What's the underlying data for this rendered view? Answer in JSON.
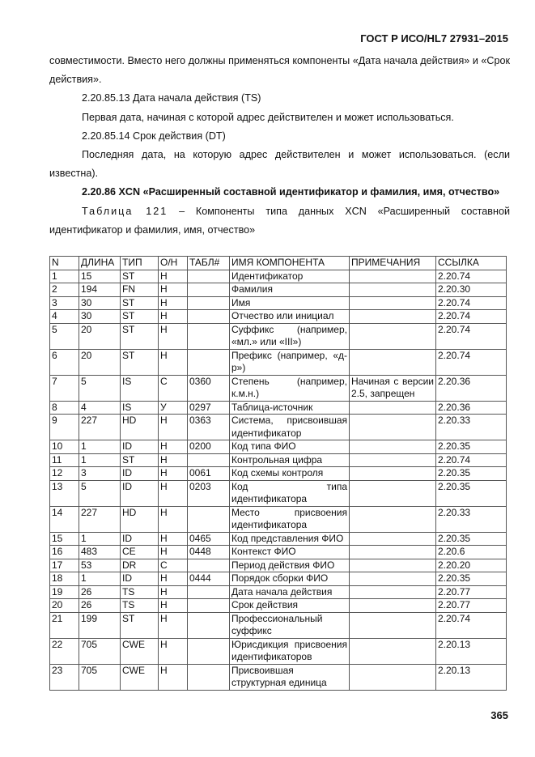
{
  "header": "ГОСТ Р ИСО/HL7 27931–2015",
  "paragraphs": {
    "p1": "совместимости. Вместо него должны применяться компоненты «Дата начала действия» и «Срок действия».",
    "p2": "2.20.85.13 Дата начала действия (TS)",
    "p3": "Первая дата, начиная с которой адрес действителен и может использоваться.",
    "p4": "2.20.85.14 Срок действия (DT)",
    "p5": "Последняя дата, на которую адрес действителен и может использоваться. (если известна).",
    "section": "2.20.86 XCN «Расширенный составной идентификатор и фамилия, имя, отчество»",
    "caption_label": "Таблица 121",
    "caption_text": " – Компоненты типа данных XCN «Расширенный составной идентификатор и фамилия, имя, отчество»"
  },
  "table": {
    "headers": [
      "N",
      "ДЛИНА",
      "ТИП",
      "О/Н",
      "ТАБЛ#",
      "ИМЯ КОМПОНЕНТА",
      "ПРИМЕЧАНИЯ",
      "ССЫЛКА"
    ],
    "rows": [
      [
        "1",
        "15",
        "ST",
        "Н",
        "",
        "Идентификатор",
        "",
        "2.20.74"
      ],
      [
        "2",
        "194",
        "FN",
        "Н",
        "",
        "Фамилия",
        "",
        "2.20.30"
      ],
      [
        "3",
        "30",
        "ST",
        "Н",
        "",
        "Имя",
        "",
        "2.20.74"
      ],
      [
        "4",
        "30",
        "ST",
        "Н",
        "",
        "Отчество или инициал",
        "",
        "2.20.74"
      ],
      [
        "5",
        "20",
        "ST",
        "Н",
        "",
        "Суффикс (например, «мл.» или «III»)",
        "",
        "2.20.74"
      ],
      [
        "6",
        "20",
        "ST",
        "Н",
        "",
        "Префикс (например, «д-р»)",
        "",
        "2.20.74"
      ],
      [
        "7",
        "5",
        "IS",
        "С",
        "0360",
        "Степень (например, к.м.н.)",
        "Начиная с версии 2.5, запрещен",
        "2.20.36"
      ],
      [
        "8",
        "4",
        "IS",
        "У",
        "0297",
        "Таблица-источник",
        "",
        "2.20.36"
      ],
      [
        "9",
        "227",
        "HD",
        "Н",
        "0363",
        "Система, присвоившая идентификатор",
        "",
        "2.20.33"
      ],
      [
        "10",
        "1",
        "ID",
        "Н",
        "0200",
        "Код типа ФИО",
        "",
        "2.20.35"
      ],
      [
        "11",
        "1",
        "ST",
        "Н",
        "",
        "Контрольная цифра",
        "",
        "2.20.74"
      ],
      [
        "12",
        "3",
        "ID",
        "Н",
        "0061",
        "Код схемы контроля",
        "",
        "2.20.35"
      ],
      [
        "13",
        "5",
        "ID",
        "Н",
        "0203",
        "Код типа идентификатора",
        "",
        "2.20.35"
      ],
      [
        "14",
        "227",
        "HD",
        "Н",
        "",
        "Место присвоения идентификатора",
        "",
        "2.20.33"
      ],
      [
        "15",
        "1",
        "ID",
        "Н",
        "0465",
        "Код представления ФИО",
        "",
        "2.20.35"
      ],
      [
        "16",
        "483",
        "CE",
        "Н",
        "0448",
        "Контекст ФИО",
        "",
        "2.20.6"
      ],
      [
        "17",
        "53",
        "DR",
        "С",
        "",
        "Период действия ФИО",
        "",
        "2.20.20"
      ],
      [
        "18",
        "1",
        "ID",
        "Н",
        "0444",
        "Порядок сборки ФИО",
        "",
        "2.20.35"
      ],
      [
        "19",
        "26",
        "TS",
        "Н",
        "",
        "Дата начала действия",
        "",
        "2.20.77"
      ],
      [
        "20",
        "26",
        "TS",
        "Н",
        "",
        "Срок действия",
        "",
        "2.20.77"
      ],
      [
        "21",
        "199",
        "ST",
        "Н",
        "",
        "Профессиональный суффикс",
        "",
        "2.20.74"
      ],
      [
        "22",
        "705",
        "CWE",
        "Н",
        "",
        "Юрисдикция присвоения идентификаторов",
        "",
        "2.20.13"
      ],
      [
        "23",
        "705",
        "CWE",
        "Н",
        "",
        "Присвоившая структурная единица",
        "",
        "2.20.13"
      ]
    ]
  },
  "page_number": "365"
}
